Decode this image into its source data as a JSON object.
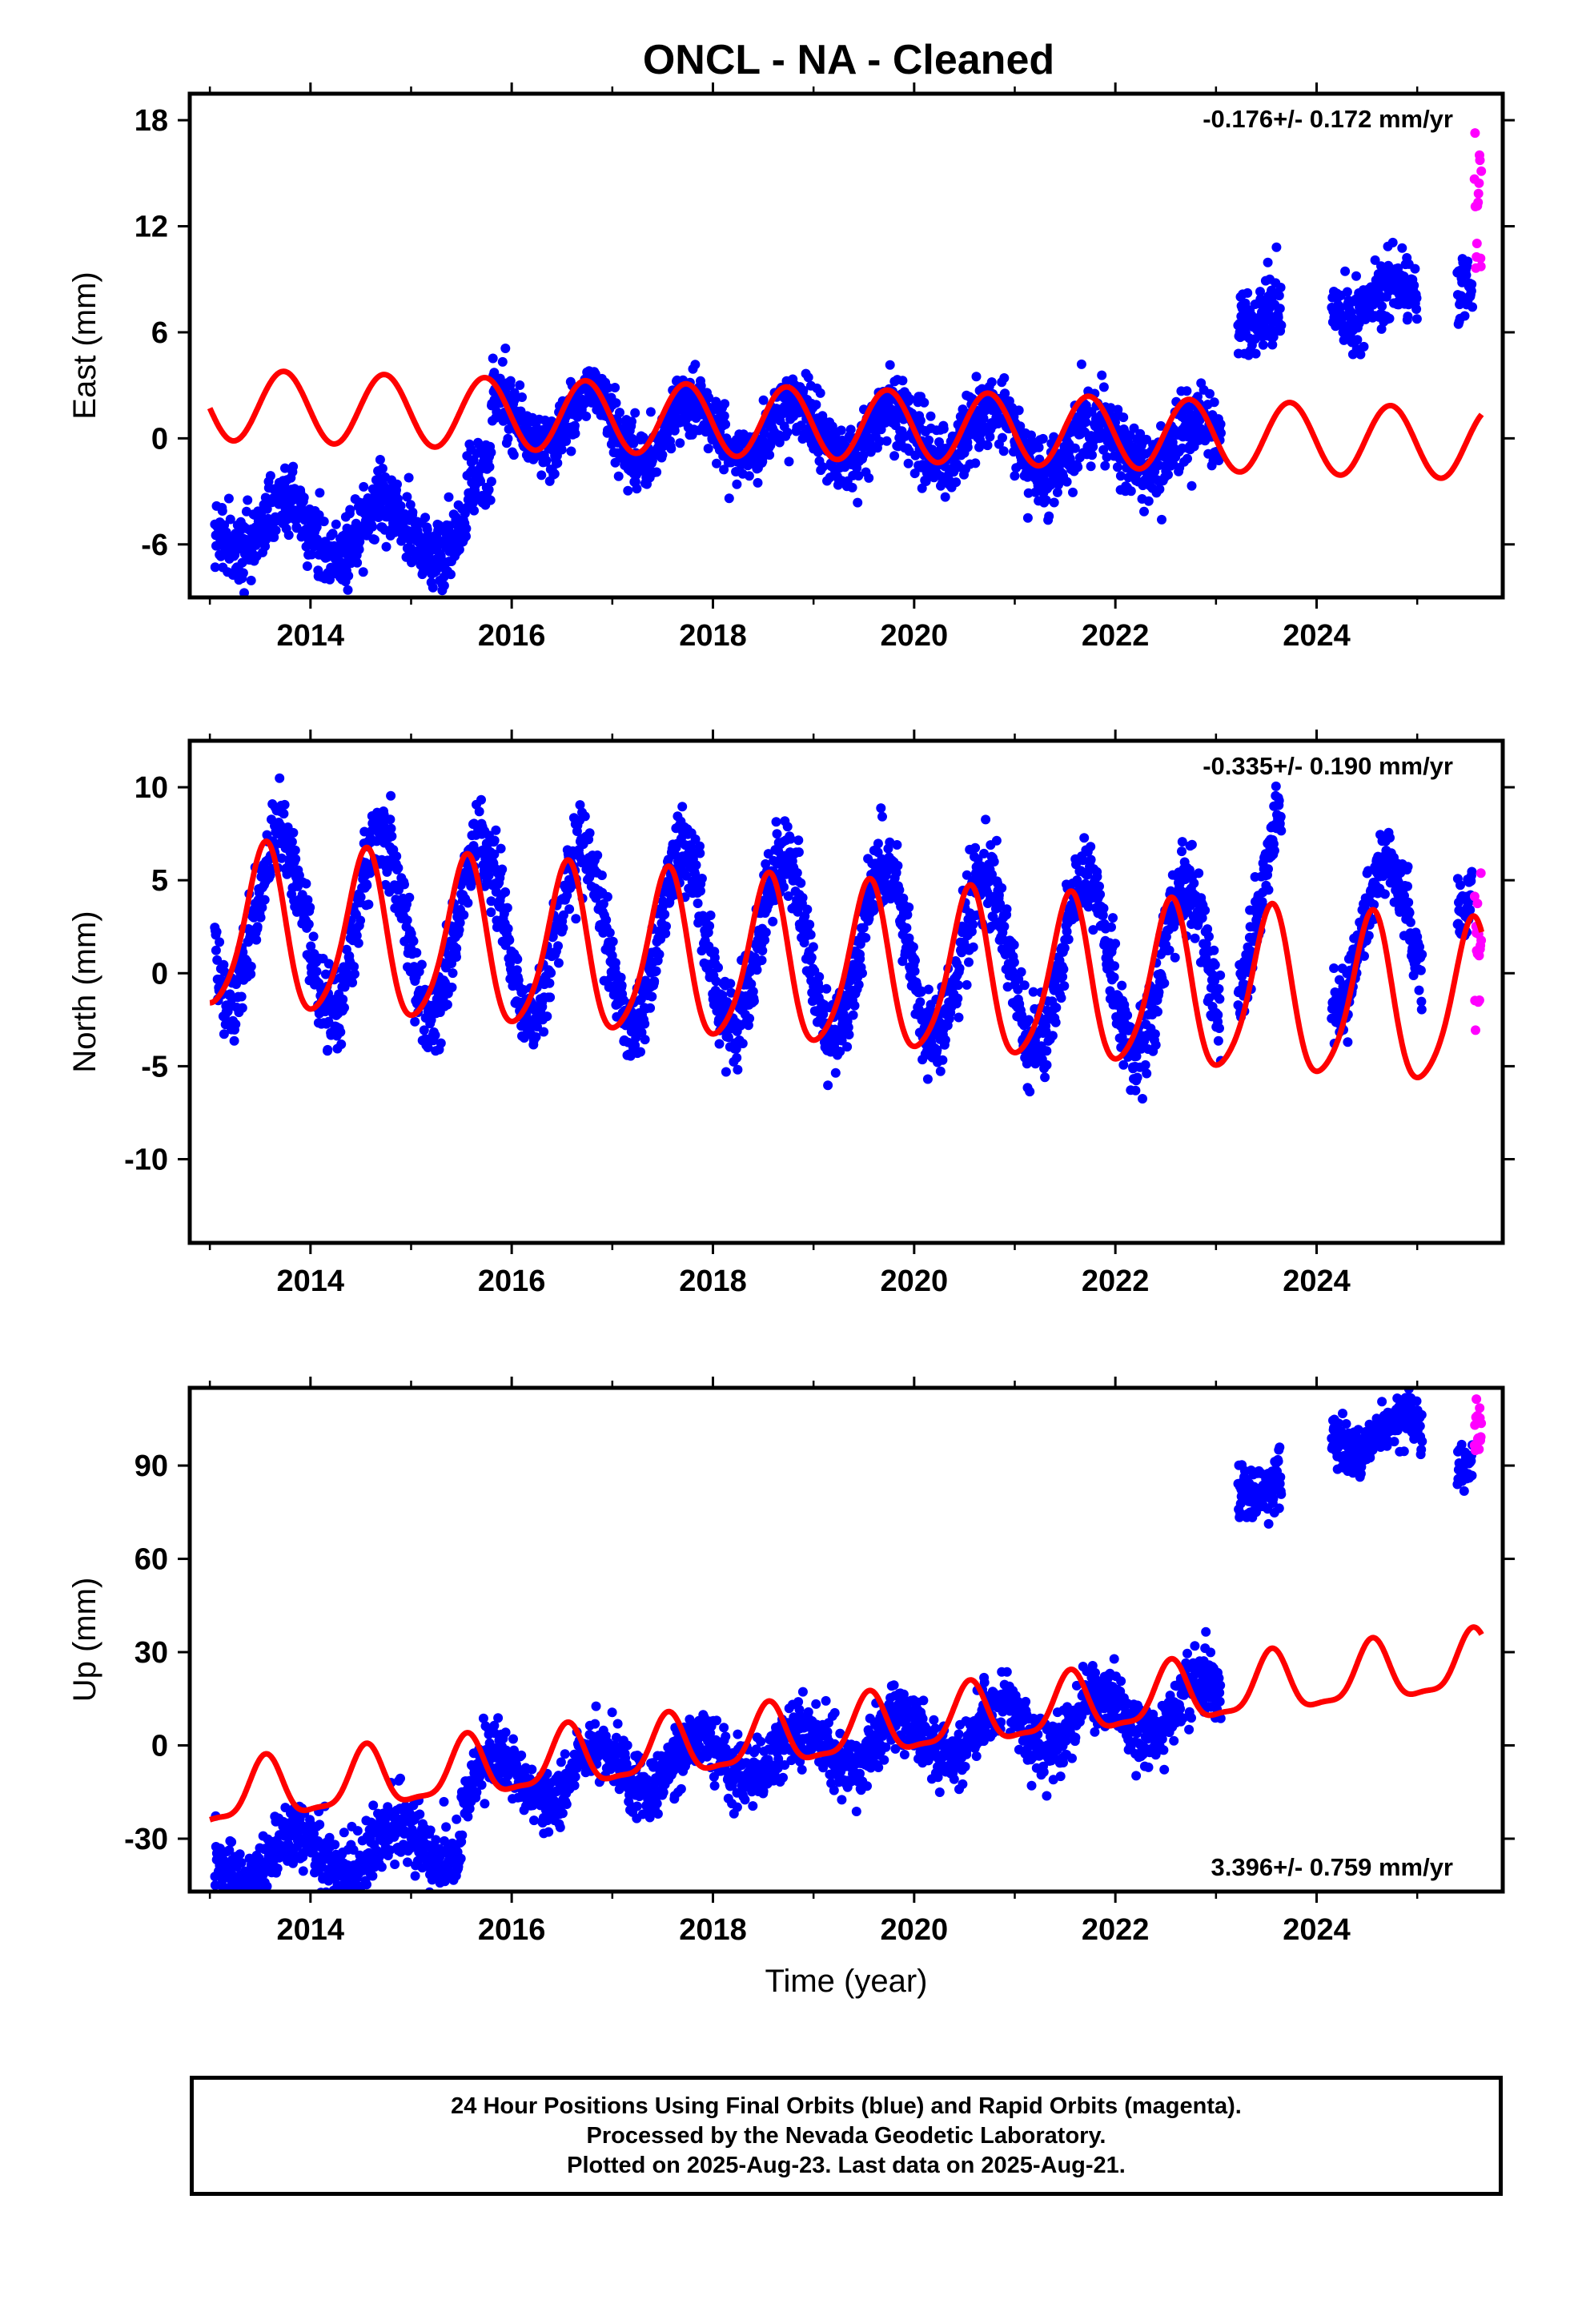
{
  "title": "ONCL  - NA - Cleaned",
  "colors": {
    "final_orbits": "#0000ff",
    "rapid_orbits": "#ff00ff",
    "model": "#ff0000"
  },
  "chart_data": [
    {
      "type": "scatter",
      "panel": "east",
      "ylabel": "East (mm)",
      "xlabel": "",
      "xlim": [
        2012.8,
        2025.85
      ],
      "ylim": [
        -9.0,
        19.5
      ],
      "xticks": [
        2014,
        2016,
        2018,
        2020,
        2022,
        2024
      ],
      "yticks": [
        -6,
        0,
        6,
        12,
        18
      ],
      "rate_label": "-0.176+/- 0.172 mm/yr",
      "rate_position": "top-right",
      "series": [
        {
          "role": "final-orbits",
          "color": "#0000ff",
          "segments": [
            {
              "from": 2013.05,
              "to": 2013.6,
              "mean": -5.0,
              "amp": 1.2,
              "phase": 0.5,
              "noise": 1.0
            },
            {
              "from": 2013.6,
              "to": 2015.55,
              "mean": -5.2,
              "amp": 1.5,
              "phase": 0.5,
              "noise": 1.0
            },
            {
              "from": 2015.55,
              "to": 2015.8,
              "mean": -3.0,
              "amp": 1.0,
              "phase": 0.5,
              "noise": 1.0
            },
            {
              "from": 2015.8,
              "to": 2017.0,
              "mean": 1.0,
              "amp": 1.6,
              "phase": 0.55,
              "noise": 0.9
            },
            {
              "from": 2017.0,
              "to": 2019.0,
              "mean": 0.5,
              "amp": 1.5,
              "phase": 0.55,
              "noise": 0.9
            },
            {
              "from": 2019.0,
              "to": 2021.0,
              "mean": 0.2,
              "amp": 1.5,
              "phase": 0.55,
              "noise": 1.0
            },
            {
              "from": 2021.0,
              "to": 2023.05,
              "mean": -0.5,
              "amp": 1.4,
              "phase": 0.55,
              "noise": 1.0
            },
            {
              "from": 2023.22,
              "to": 2023.65,
              "mean": 7.0,
              "amp": 0.8,
              "phase": 0.55,
              "noise": 1.1
            },
            {
              "from": 2024.15,
              "to": 2025.0,
              "mean": 7.6,
              "amp": 1.0,
              "phase": 0.55,
              "noise": 0.9
            },
            {
              "from": 2025.4,
              "to": 2025.55,
              "mean": 8.5,
              "amp": 0.5,
              "phase": 0.55,
              "noise": 0.9
            }
          ]
        },
        {
          "role": "rapid-orbits",
          "color": "#ff00ff",
          "segments": [
            {
              "from": 2025.57,
              "to": 2025.64,
              "mean": 13.0,
              "amp": 0,
              "phase": 0,
              "noise": 3.0
            }
          ]
        },
        {
          "role": "model",
          "color": "#ff0000",
          "model": {
            "t0": 2013.0,
            "t1": 2025.64,
            "a": 0.8,
            "b": -0.176,
            "c": -2.0,
            "d": -0.2,
            "e": 0,
            "f": 0,
            "ref": 2019.3
          }
        }
      ]
    },
    {
      "type": "scatter",
      "panel": "north",
      "ylabel": "North (mm)",
      "xlabel": "",
      "xlim": [
        2012.8,
        2025.85
      ],
      "ylim": [
        -14.5,
        12.5
      ],
      "xticks": [
        2014,
        2016,
        2018,
        2020,
        2022,
        2024
      ],
      "yticks": [
        -10,
        -5,
        0,
        5,
        10
      ],
      "rate_label": "-0.335+/- 0.190 mm/yr",
      "rate_position": "top-right",
      "series": [
        {
          "role": "final-orbits",
          "color": "#0000ff",
          "segments": [
            {
              "from": 2013.05,
              "to": 2023.05,
              "mean": 1.2,
              "amp": 4.6,
              "phase": 0.45,
              "noise": 1.1,
              "trend": -0.3
            },
            {
              "from": 2023.22,
              "to": 2023.65,
              "mean": 4.0,
              "amp": 5.0,
              "phase": 0.45,
              "noise": 1.2
            },
            {
              "from": 2024.15,
              "to": 2025.05,
              "mean": 2.0,
              "amp": 4.0,
              "phase": 0.45,
              "noise": 1.0
            },
            {
              "from": 2025.4,
              "to": 2025.55,
              "mean": 3.5,
              "amp": 1.0,
              "phase": 0.45,
              "noise": 0.9
            }
          ]
        },
        {
          "role": "rapid-orbits",
          "color": "#ff00ff",
          "segments": [
            {
              "from": 2025.57,
              "to": 2025.64,
              "mean": 0.5,
              "amp": 0,
              "phase": 0,
              "noise": 2.5
            }
          ]
        },
        {
          "role": "model",
          "color": "#ff0000",
          "model": {
            "t0": 2013.0,
            "t1": 2025.64,
            "a": 0.2,
            "b": -0.335,
            "c": -1.2,
            "d": -4.2,
            "e": 0.6,
            "f": 0.3,
            "ref": 2019.3
          }
        }
      ]
    },
    {
      "type": "scatter",
      "panel": "up",
      "ylabel": "Up (mm)",
      "xlabel": "Time (year)",
      "xlim": [
        2012.8,
        2025.85
      ],
      "ylim": [
        -47,
        115
      ],
      "xticks": [
        2014,
        2016,
        2018,
        2020,
        2022,
        2024
      ],
      "yticks": [
        -30,
        0,
        30,
        60,
        90
      ],
      "rate_label": "3.396+/- 0.759 mm/yr",
      "rate_position": "bottom-right",
      "series": [
        {
          "role": "final-orbits",
          "color": "#0000ff",
          "segments": [
            {
              "from": 2013.05,
              "to": 2015.5,
              "mean": -22.0,
              "amp": 7.0,
              "phase": 0.6,
              "noise": 5.5,
              "trend": 2.5
            },
            {
              "from": 2015.5,
              "to": 2023.05,
              "mean": 0.0,
              "amp": 8.0,
              "phase": 0.6,
              "noise": 5.0,
              "trend": 3.4
            },
            {
              "from": 2023.22,
              "to": 2023.65,
              "mean": 85.0,
              "amp": 4.0,
              "phase": 0.6,
              "noise": 4.5
            },
            {
              "from": 2024.15,
              "to": 2025.05,
              "mean": 100.0,
              "amp": 5.0,
              "phase": 0.6,
              "noise": 4.0
            },
            {
              "from": 2025.4,
              "to": 2025.55,
              "mean": 92.0,
              "amp": 2.0,
              "phase": 0.6,
              "noise": 4.0
            }
          ]
        },
        {
          "role": "rapid-orbits",
          "color": "#ff00ff",
          "segments": [
            {
              "from": 2025.57,
              "to": 2025.64,
              "mean": 102.0,
              "amp": 0,
              "phase": 0,
              "noise": 4.5
            }
          ]
        },
        {
          "role": "model",
          "color": "#ff0000",
          "model": {
            "t0": 2013.0,
            "t1": 2025.64,
            "a": 4.5,
            "b": 3.396,
            "c": -3.0,
            "d": -9.0,
            "e": 2.0,
            "f": 2.0,
            "ref": 2019.3
          }
        }
      ]
    }
  ],
  "caption": {
    "line1": "24 Hour Positions Using Final Orbits (blue) and Rapid Orbits (magenta).",
    "line2": "Processed by the Nevada Geodetic Laboratory.",
    "line3": "Plotted on 2025-Aug-23. Last data on 2025-Aug-21."
  }
}
